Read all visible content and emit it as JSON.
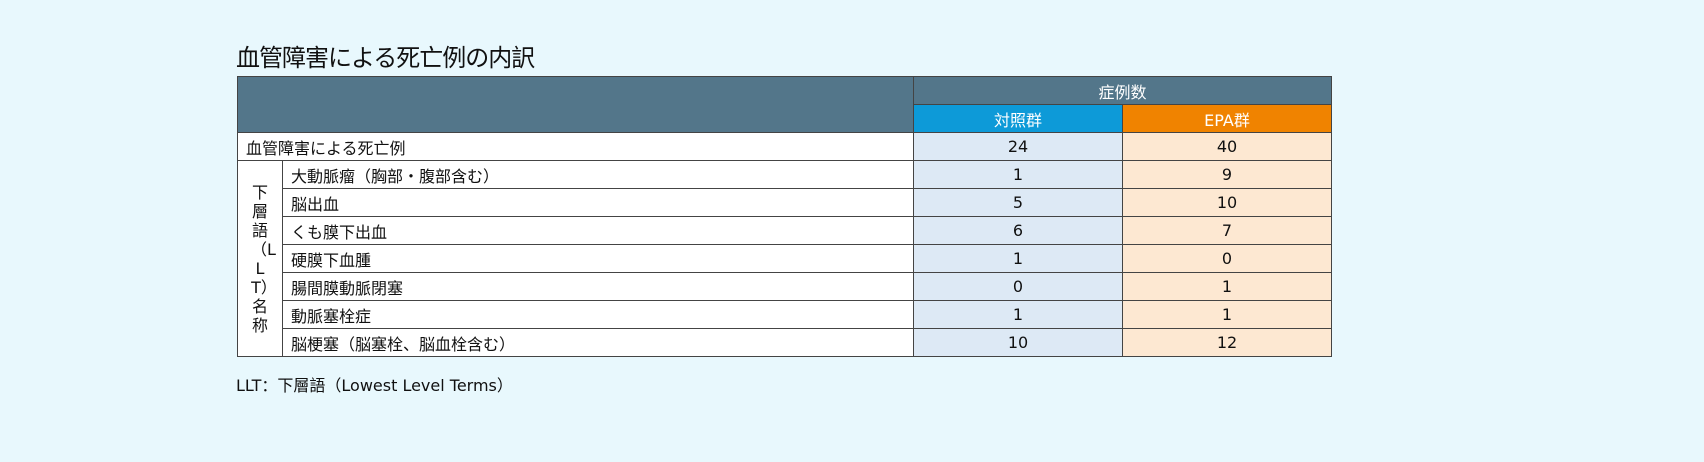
{
  "title": "血管障害による死亡例の内訳",
  "header": {
    "group": "症例数",
    "col_control": "対照群",
    "col_epa": "EPA群"
  },
  "total_row": {
    "label": "血管障害による死亡例",
    "control": "24",
    "epa": "40"
  },
  "sub_label": "下層語（LLT）名称",
  "rows": [
    {
      "label": "大動脈瘤（胸部・腹部含む）",
      "control": "1",
      "epa": "9"
    },
    {
      "label": "脳出血",
      "control": "5",
      "epa": "10"
    },
    {
      "label": "くも膜下出血",
      "control": "6",
      "epa": "7"
    },
    {
      "label": "硬膜下血腫",
      "control": "1",
      "epa": "0"
    },
    {
      "label": "腸間膜動脈閉塞",
      "control": "0",
      "epa": "1"
    },
    {
      "label": "動脈塞栓症",
      "control": "1",
      "epa": "1"
    },
    {
      "label": "脳梗塞（脳塞栓、脳血栓含む）",
      "control": "10",
      "epa": "12"
    }
  ],
  "footnote": "LLT：下層語（Lowest Level Terms）",
  "colors": {
    "header": "#53768a",
    "control": "#0d9ad8",
    "epa": "#f08300",
    "control_cell": "#dde9f5",
    "epa_cell": "#fde8d2",
    "background": "#e8f8fd"
  }
}
